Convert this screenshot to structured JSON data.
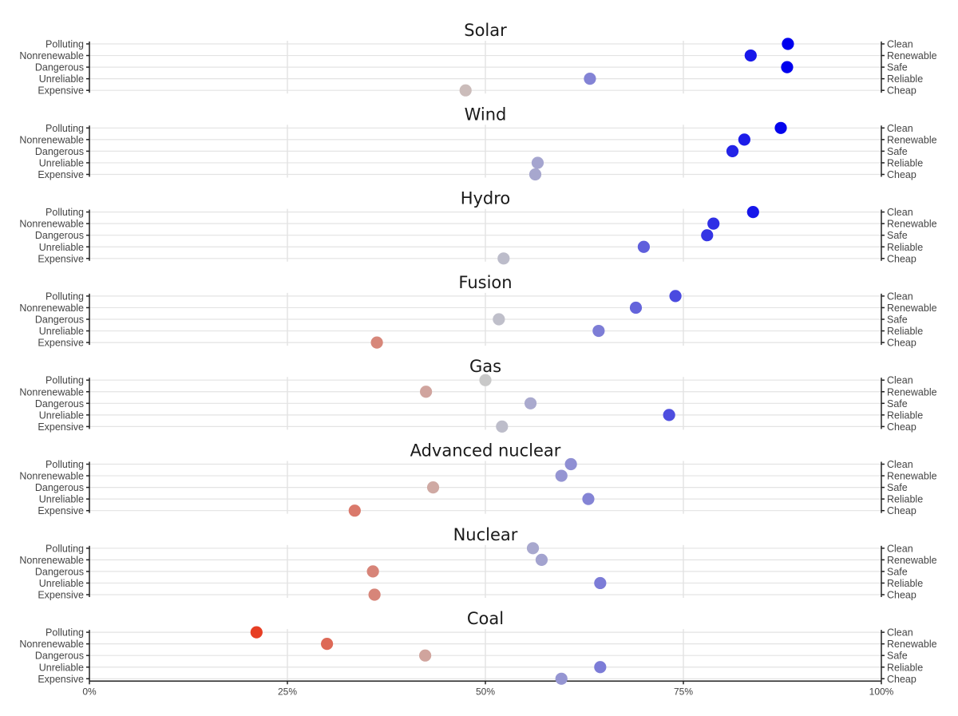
{
  "chart_data": {
    "type": "scatter",
    "title": "",
    "xlabel": "",
    "ylabel": "",
    "xlim": [
      0,
      100
    ],
    "x_ticks": [
      0,
      25,
      50,
      75,
      100
    ],
    "x_tick_labels": [
      "0%",
      "25%",
      "50%",
      "75%",
      "100%"
    ],
    "attributes": [
      {
        "negative": "Polluting",
        "positive": "Clean"
      },
      {
        "negative": "Nonrenewable",
        "positive": "Renewable"
      },
      {
        "negative": "Dangerous",
        "positive": "Safe"
      },
      {
        "negative": "Unreliable",
        "positive": "Reliable"
      },
      {
        "negative": "Expensive",
        "positive": "Cheap"
      }
    ],
    "color_scale": {
      "low": "#e8391e",
      "mid": "#c8c8c8",
      "high": "#0000ee"
    },
    "facets": [
      {
        "name": "Solar",
        "values": [
          88.2,
          83.5,
          88.1,
          63.2,
          47.5
        ]
      },
      {
        "name": "Wind",
        "values": [
          87.3,
          82.7,
          81.2,
          56.6,
          56.3
        ]
      },
      {
        "name": "Hydro",
        "values": [
          83.8,
          78.8,
          78.0,
          70.0,
          52.3
        ]
      },
      {
        "name": "Fusion",
        "values": [
          74.0,
          69.0,
          51.7,
          64.3,
          36.3
        ]
      },
      {
        "name": "Gas",
        "values": [
          50.0,
          42.5,
          55.7,
          73.2,
          52.1
        ]
      },
      {
        "name": "Advanced nuclear",
        "values": [
          60.8,
          59.6,
          43.4,
          63.0,
          33.5
        ]
      },
      {
        "name": "Nuclear",
        "values": [
          56.0,
          57.1,
          35.8,
          64.5,
          36.0
        ]
      },
      {
        "name": "Coal",
        "values": [
          21.1,
          30.0,
          42.4,
          64.5,
          59.6
        ]
      }
    ]
  }
}
